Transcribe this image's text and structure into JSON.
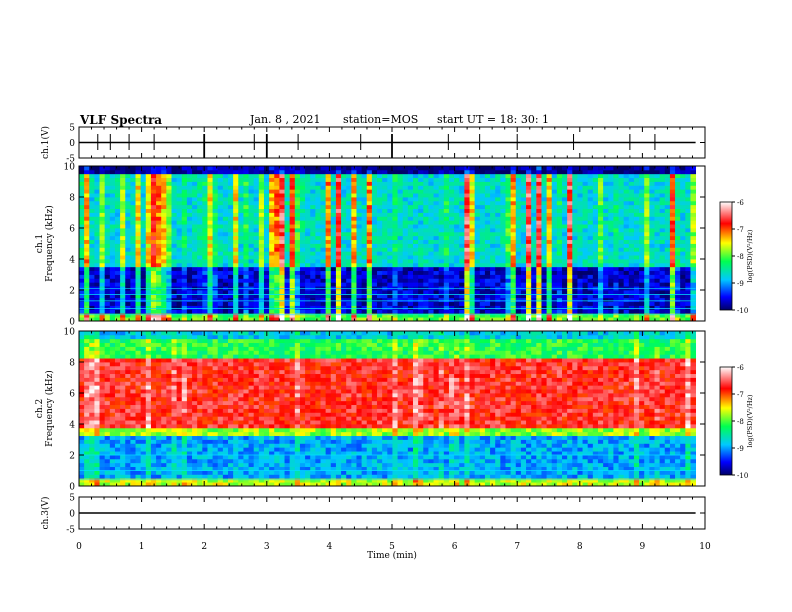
{
  "header": {
    "title": "VLF Spectra",
    "date": "Jan. 8 , 2021",
    "station": "station=MOS",
    "start": "start UT =  18: 30: 1"
  },
  "colorbar": {
    "label": "log(PSD)(V²/Hz)",
    "ticks": [
      "-6",
      "-7",
      "-8",
      "-9",
      "-10"
    ],
    "range": [
      -10,
      -6
    ]
  },
  "chart_data": [
    {
      "type": "line",
      "ylabel": "ch.1(V)",
      "yticks": [
        "5",
        "0",
        "-5"
      ],
      "ylim": [
        -5,
        5
      ],
      "xlim": [
        0,
        10
      ],
      "x": [
        0,
        9.85
      ],
      "y": [
        0,
        0
      ]
    },
    {
      "type": "heatmap",
      "ylabel": "ch.1\nFrequency (kHz)",
      "yticks": [
        "0",
        "2",
        "4",
        "6",
        "8",
        "10"
      ],
      "ylim": [
        0,
        10
      ],
      "xlim": [
        0,
        10
      ],
      "x_extent": [
        0,
        9.85
      ],
      "colorbar_range": [
        -10,
        -6
      ]
    },
    {
      "type": "heatmap",
      "ylabel": "ch.2\nFrequency (kHz)",
      "yticks": [
        "0",
        "2",
        "4",
        "6",
        "8",
        "10"
      ],
      "ylim": [
        0,
        10
      ],
      "xlim": [
        0,
        10
      ],
      "x_extent": [
        0,
        9.85
      ],
      "colorbar_range": [
        -10,
        -6
      ]
    },
    {
      "type": "line",
      "ylabel": "ch.3(V)",
      "yticks": [
        "5",
        "0",
        "-5"
      ],
      "ylim": [
        -5,
        5
      ],
      "xlim": [
        0,
        10
      ],
      "x": [
        0,
        9.85
      ],
      "y": [
        0,
        0
      ],
      "xlabel": "Time (min)",
      "xticks": [
        "0",
        "1",
        "2",
        "3",
        "4",
        "5",
        "6",
        "7",
        "8",
        "9",
        "10"
      ]
    }
  ]
}
